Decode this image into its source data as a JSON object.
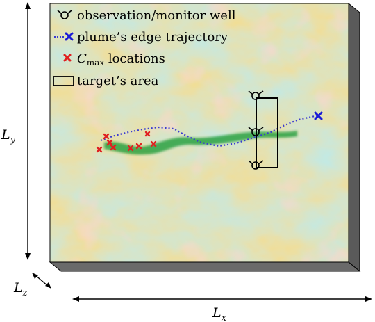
{
  "legend": {
    "items": [
      {
        "symbol": "well-icon",
        "label": "observation/monitor well"
      },
      {
        "symbol": "blue-cross",
        "label": "plume’s edge trajectory",
        "color": "#1a1ad6"
      },
      {
        "symbol": "red-cross",
        "label_prefix": "C",
        "label_sub": "max",
        "label_suffix": " locations",
        "color": "#e02020"
      },
      {
        "symbol": "rectangle",
        "label": "target’s area"
      }
    ]
  },
  "axes": {
    "ly": {
      "base": "L",
      "sub": "y"
    },
    "lx": {
      "base": "L",
      "sub": "x"
    },
    "lz": {
      "base": "L",
      "sub": "z"
    }
  },
  "colors": {
    "field_low": "#7fcdea",
    "field_mid": "#c9e6a8",
    "field_high": "#f2dc8a",
    "field_hot": "#f4b0a0",
    "plume": "#1e9e3c",
    "trajectory": "#3a3ad0",
    "cmax": "#e02020",
    "box_side": "#555555"
  }
}
